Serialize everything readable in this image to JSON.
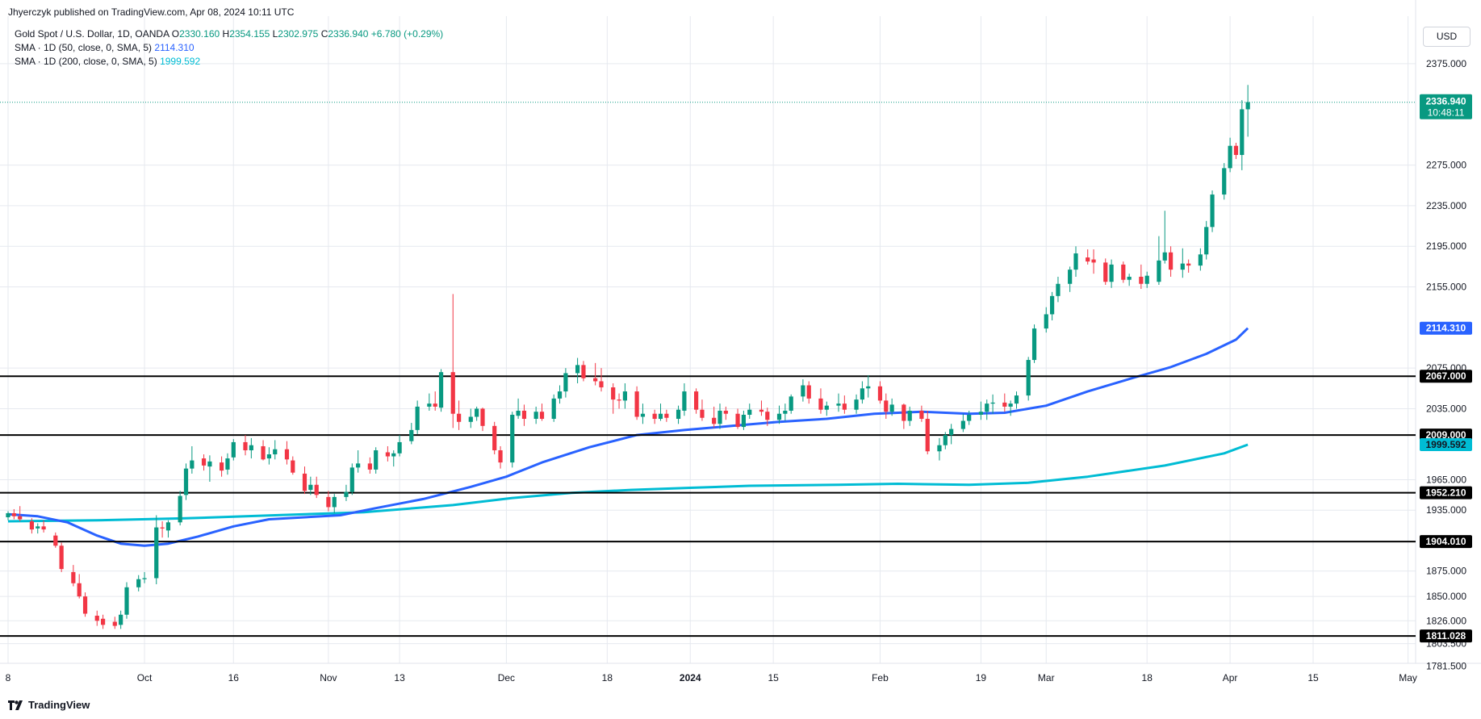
{
  "header": {
    "published": "Jhyerczyk published on TradingView.com, Apr 08, 2024 10:11 UTC"
  },
  "legend": {
    "instrument": "Gold Spot / U.S. Dollar, 1D, OANDA",
    "o_label": "O",
    "o_value": "2330.160",
    "h_label": "H",
    "h_value": "2354.155",
    "l_label": "L",
    "l_value": "2302.975",
    "c_label": "C",
    "c_value": "2336.940",
    "change": "+6.780 (+0.29%)",
    "sma50_label": "SMA · 1D (50, close, 0, SMA, 5)",
    "sma50_value": "2114.310",
    "sma200_label": "SMA · 1D (200, close, 0, SMA, 5)",
    "sma200_value": "1999.592"
  },
  "currency_button": "USD",
  "footer": {
    "brand": "TradingView"
  },
  "colors": {
    "up": "#089981",
    "down": "#f23645",
    "sma50": "#2962ff",
    "sma200": "#00bcd4",
    "level": "#000000",
    "grid": "#e6e9ef",
    "price_tag": "#089981"
  },
  "chart_data": {
    "type": "candlestick",
    "title": "Gold Spot / U.S. Dollar, 1D, OANDA",
    "ylim": [
      1760,
      2400
    ],
    "y_ticks": [
      "2375.000",
      "2275.000",
      "2235.000",
      "2195.000",
      "2155.000",
      "2075.000",
      "2035.000",
      "1965.000",
      "1935.000",
      "1875.000",
      "1850.000",
      "1826.000",
      "1803.500",
      "1781.500"
    ],
    "x_ticks": [
      {
        "label": "8",
        "day": 0
      },
      {
        "label": "Oct",
        "day": 23
      },
      {
        "label": "16",
        "day": 38
      },
      {
        "label": "Nov",
        "day": 54
      },
      {
        "label": "13",
        "day": 66
      },
      {
        "label": "Dec",
        "day": 84
      },
      {
        "label": "18",
        "day": 101
      },
      {
        "label": "2024",
        "day": 115
      },
      {
        "label": "15",
        "day": 129
      },
      {
        "label": "Feb",
        "day": 147
      },
      {
        "label": "19",
        "day": 164
      },
      {
        "label": "Mar",
        "day": 175
      },
      {
        "label": "18",
        "day": 192
      },
      {
        "label": "Apr",
        "day": 206
      },
      {
        "label": "15",
        "day": 220
      },
      {
        "label": "May",
        "day": 236
      }
    ],
    "horizontal_levels": [
      {
        "value": 2067.0,
        "label": "2067.000"
      },
      {
        "value": 2009.0,
        "label": "2009.000"
      },
      {
        "value": 1952.21,
        "label": "1952.210"
      },
      {
        "value": 1904.01,
        "label": "1904.010"
      },
      {
        "value": 1811.028,
        "label": "1811.028"
      }
    ],
    "last_price": {
      "value": 2336.94,
      "label": "2336.940",
      "countdown": "10:48:11"
    },
    "sma50": {
      "label": "2114.310",
      "value": 2114.31,
      "points": [
        [
          0,
          1931
        ],
        [
          5,
          1929
        ],
        [
          10,
          1923
        ],
        [
          15,
          1910
        ],
        [
          19,
          1902
        ],
        [
          23,
          1900
        ],
        [
          27,
          1902
        ],
        [
          32,
          1909
        ],
        [
          38,
          1919
        ],
        [
          44,
          1926
        ],
        [
          50,
          1928
        ],
        [
          56,
          1930
        ],
        [
          62,
          1937
        ],
        [
          70,
          1946
        ],
        [
          78,
          1958
        ],
        [
          84,
          1968
        ],
        [
          90,
          1982
        ],
        [
          98,
          1997
        ],
        [
          106,
          2009
        ],
        [
          114,
          2014
        ],
        [
          122,
          2018
        ],
        [
          130,
          2022
        ],
        [
          138,
          2025
        ],
        [
          146,
          2030
        ],
        [
          154,
          2032
        ],
        [
          162,
          2030
        ],
        [
          168,
          2031
        ],
        [
          175,
          2038
        ],
        [
          182,
          2052
        ],
        [
          190,
          2066
        ],
        [
          196,
          2076
        ],
        [
          202,
          2089
        ],
        [
          207,
          2103
        ],
        [
          209,
          2114.31
        ]
      ]
    },
    "sma200": {
      "label": "1999.592",
      "value": 1999.592,
      "points": [
        [
          0,
          1924
        ],
        [
          15,
          1925
        ],
        [
          30,
          1927
        ],
        [
          45,
          1930
        ],
        [
          60,
          1933
        ],
        [
          75,
          1940
        ],
        [
          85,
          1947
        ],
        [
          95,
          1952
        ],
        [
          105,
          1955
        ],
        [
          115,
          1957
        ],
        [
          125,
          1959
        ],
        [
          140,
          1960
        ],
        [
          150,
          1961
        ],
        [
          162,
          1960
        ],
        [
          172,
          1962
        ],
        [
          182,
          1968
        ],
        [
          195,
          1979
        ],
        [
          205,
          1991
        ],
        [
          209,
          1999.592
        ]
      ]
    },
    "candles": [
      [
        0,
        1928,
        1934,
        1925,
        1932
      ],
      [
        1,
        1932,
        1936,
        1926,
        1929
      ],
      [
        2,
        1929,
        1939,
        1924,
        1926
      ],
      [
        4,
        1924,
        1927,
        1912,
        1916
      ],
      [
        5,
        1917,
        1922,
        1912,
        1919
      ],
      [
        6,
        1919,
        1925,
        1913,
        1916
      ],
      [
        8,
        1910,
        1913,
        1898,
        1900
      ],
      [
        9,
        1900,
        1903,
        1874,
        1877
      ],
      [
        11,
        1874,
        1881,
        1860,
        1863
      ],
      [
        12,
        1863,
        1872,
        1848,
        1850
      ],
      [
        13,
        1850,
        1854,
        1830,
        1833
      ],
      [
        15,
        1831,
        1836,
        1821,
        1826
      ],
      [
        16,
        1828,
        1832,
        1818,
        1822
      ],
      [
        18,
        1825,
        1830,
        1818,
        1821
      ],
      [
        19,
        1822,
        1836,
        1818,
        1832
      ],
      [
        20,
        1832,
        1864,
        1828,
        1859
      ],
      [
        22,
        1859,
        1871,
        1855,
        1867
      ],
      [
        23,
        1867,
        1874,
        1863,
        1868
      ],
      [
        25,
        1868,
        1930,
        1862,
        1918
      ],
      [
        26,
        1918,
        1924,
        1908,
        1917
      ],
      [
        27,
        1915,
        1925,
        1908,
        1923
      ],
      [
        29,
        1923,
        1954,
        1920,
        1949
      ],
      [
        30,
        1950,
        1981,
        1945,
        1976
      ],
      [
        31,
        1976,
        1998,
        1971,
        1984
      ],
      [
        33,
        1986,
        1990,
        1974,
        1979
      ],
      [
        34,
        1978,
        1989,
        1963,
        1983
      ],
      [
        36,
        1982,
        1988,
        1968,
        1974
      ],
      [
        37,
        1975,
        1991,
        1970,
        1986
      ],
      [
        38,
        1987,
        2005,
        1984,
        2002
      ],
      [
        40,
        2002,
        2009,
        1989,
        1994
      ],
      [
        41,
        1994,
        2006,
        1986,
        1999
      ],
      [
        43,
        1998,
        2004,
        1984,
        1985
      ],
      [
        44,
        1986,
        1997,
        1980,
        1990
      ],
      [
        45,
        1990,
        2004,
        1985,
        1995
      ],
      [
        47,
        1995,
        2003,
        1980,
        1985
      ],
      [
        48,
        1984,
        1988,
        1970,
        1972
      ],
      [
        50,
        1971,
        1978,
        1951,
        1954
      ],
      [
        51,
        1955,
        1968,
        1950,
        1960
      ],
      [
        52,
        1960,
        1968,
        1947,
        1950
      ],
      [
        54,
        1948,
        1954,
        1934,
        1938
      ],
      [
        55,
        1938,
        1951,
        1932,
        1948
      ],
      [
        57,
        1948,
        1960,
        1944,
        1953
      ],
      [
        58,
        1953,
        1981,
        1950,
        1977
      ],
      [
        59,
        1977,
        1994,
        1972,
        1981
      ],
      [
        61,
        1981,
        1987,
        1971,
        1975
      ],
      [
        62,
        1975,
        1997,
        1971,
        1994
      ],
      [
        64,
        1992,
        1998,
        1983,
        1988
      ],
      [
        65,
        1988,
        1994,
        1978,
        1991
      ],
      [
        66,
        1991,
        2009,
        1988,
        2002
      ],
      [
        68,
        2003,
        2021,
        2000,
        2014
      ],
      [
        69,
        2014,
        2043,
        2010,
        2037
      ],
      [
        71,
        2037,
        2050,
        2033,
        2040
      ],
      [
        72,
        2040,
        2052,
        2033,
        2037
      ],
      [
        73,
        2036,
        2074,
        2032,
        2071
      ],
      [
        75,
        2071,
        2148,
        2016,
        2030
      ],
      [
        76,
        2030,
        2043,
        2014,
        2022
      ],
      [
        78,
        2022,
        2035,
        2016,
        2027
      ],
      [
        79,
        2027,
        2037,
        2023,
        2035
      ],
      [
        80,
        2035,
        2036,
        2013,
        2018
      ],
      [
        82,
        2018,
        2022,
        1990,
        1994
      ],
      [
        83,
        1994,
        1998,
        1976,
        1982
      ],
      [
        85,
        1982,
        2032,
        1977,
        2029
      ],
      [
        86,
        2028,
        2045,
        2025,
        2033
      ],
      [
        87,
        2033,
        2039,
        2018,
        2025
      ],
      [
        89,
        2025,
        2037,
        2020,
        2032
      ],
      [
        90,
        2032,
        2040,
        2023,
        2025
      ],
      [
        92,
        2025,
        2049,
        2022,
        2045
      ],
      [
        93,
        2045,
        2058,
        2040,
        2052
      ],
      [
        94,
        2052,
        2075,
        2046,
        2070
      ],
      [
        96,
        2070,
        2085,
        2060,
        2078
      ],
      [
        97,
        2078,
        2082,
        2062,
        2065
      ],
      [
        99,
        2065,
        2080,
        2058,
        2062
      ],
      [
        100,
        2062,
        2075,
        2052,
        2056
      ],
      [
        102,
        2056,
        2060,
        2030,
        2044
      ],
      [
        103,
        2044,
        2050,
        2035,
        2043
      ],
      [
        104,
        2043,
        2060,
        2035,
        2052
      ],
      [
        106,
        2052,
        2057,
        2024,
        2027
      ],
      [
        107,
        2027,
        2040,
        2020,
        2030
      ],
      [
        109,
        2030,
        2034,
        2020,
        2025
      ],
      [
        110,
        2025,
        2040,
        2023,
        2030
      ],
      [
        111,
        2030,
        2034,
        2022,
        2026
      ],
      [
        113,
        2025,
        2038,
        2020,
        2034
      ],
      [
        114,
        2033,
        2060,
        2028,
        2052
      ],
      [
        116,
        2052,
        2055,
        2030,
        2034
      ],
      [
        117,
        2034,
        2044,
        2023,
        2026
      ],
      [
        119,
        2026,
        2037,
        2016,
        2020
      ],
      [
        120,
        2020,
        2040,
        2015,
        2033
      ],
      [
        121,
        2033,
        2037,
        2024,
        2030
      ],
      [
        123,
        2030,
        2035,
        2015,
        2017
      ],
      [
        124,
        2017,
        2033,
        2014,
        2029
      ],
      [
        125,
        2029,
        2040,
        2025,
        2034
      ],
      [
        127,
        2034,
        2043,
        2028,
        2032
      ],
      [
        128,
        2032,
        2036,
        2018,
        2024
      ],
      [
        130,
        2024,
        2038,
        2020,
        2030
      ],
      [
        131,
        2030,
        2040,
        2023,
        2033
      ],
      [
        132,
        2033,
        2049,
        2030,
        2047
      ],
      [
        134,
        2047,
        2064,
        2042,
        2058
      ],
      [
        135,
        2058,
        2062,
        2040,
        2045
      ],
      [
        137,
        2045,
        2055,
        2030,
        2034
      ],
      [
        138,
        2034,
        2042,
        2028,
        2038
      ],
      [
        140,
        2038,
        2050,
        2032,
        2040
      ],
      [
        141,
        2040,
        2048,
        2030,
        2034
      ],
      [
        143,
        2034,
        2049,
        2030,
        2044
      ],
      [
        144,
        2044,
        2062,
        2040,
        2055
      ],
      [
        145,
        2055,
        2068,
        2046,
        2057
      ],
      [
        147,
        2057,
        2062,
        2040,
        2043
      ],
      [
        148,
        2043,
        2050,
        2025,
        2032
      ],
      [
        149,
        2032,
        2045,
        2028,
        2039
      ],
      [
        151,
        2039,
        2040,
        2015,
        2023
      ],
      [
        152,
        2023,
        2037,
        2018,
        2033
      ],
      [
        154,
        2033,
        2038,
        2022,
        2025
      ],
      [
        155,
        2025,
        2033,
        1990,
        1993
      ],
      [
        157,
        1993,
        2006,
        1984,
        1999
      ],
      [
        158,
        1999,
        2012,
        1995,
        2009
      ],
      [
        159,
        2009,
        2020,
        2000,
        2015
      ],
      [
        161,
        2015,
        2030,
        2012,
        2023
      ],
      [
        162,
        2023,
        2033,
        2019,
        2029
      ],
      [
        164,
        2029,
        2042,
        2024,
        2032
      ],
      [
        165,
        2032,
        2044,
        2024,
        2040
      ],
      [
        166,
        2040,
        2049,
        2030,
        2041
      ],
      [
        168,
        2041,
        2050,
        2032,
        2037
      ],
      [
        169,
        2037,
        2043,
        2028,
        2040
      ],
      [
        170,
        2040,
        2052,
        2035,
        2048
      ],
      [
        172,
        2048,
        2086,
        2043,
        2083
      ],
      [
        173,
        2083,
        2118,
        2080,
        2114
      ],
      [
        175,
        2114,
        2135,
        2110,
        2128
      ],
      [
        176,
        2128,
        2150,
        2122,
        2146
      ],
      [
        177,
        2146,
        2165,
        2140,
        2158
      ],
      [
        179,
        2158,
        2175,
        2150,
        2172
      ],
      [
        180,
        2172,
        2195,
        2165,
        2188
      ],
      [
        182,
        2184,
        2192,
        2177,
        2180
      ],
      [
        183,
        2182,
        2192,
        2168,
        2179
      ],
      [
        185,
        2179,
        2183,
        2157,
        2160
      ],
      [
        186,
        2160,
        2182,
        2154,
        2177
      ],
      [
        188,
        2177,
        2180,
        2159,
        2162
      ],
      [
        189,
        2162,
        2168,
        2156,
        2165
      ],
      [
        191,
        2165,
        2177,
        2153,
        2158
      ],
      [
        192,
        2158,
        2170,
        2154,
        2166
      ],
      [
        194,
        2160,
        2205,
        2157,
        2181
      ],
      [
        195,
        2181,
        2230,
        2178,
        2189
      ],
      [
        196,
        2189,
        2195,
        2165,
        2172
      ],
      [
        198,
        2172,
        2193,
        2164,
        2178
      ],
      [
        199,
        2178,
        2182,
        2169,
        2176
      ],
      [
        201,
        2176,
        2193,
        2171,
        2187
      ],
      [
        202,
        2187,
        2220,
        2182,
        2214
      ],
      [
        203,
        2214,
        2250,
        2209,
        2246
      ],
      [
        205,
        2246,
        2277,
        2241,
        2272
      ],
      [
        206,
        2272,
        2302,
        2268,
        2294
      ],
      [
        207,
        2294,
        2297,
        2281,
        2285
      ],
      [
        208,
        2285,
        2339,
        2270,
        2330
      ],
      [
        209,
        2330,
        2354,
        2303,
        2337
      ]
    ]
  }
}
